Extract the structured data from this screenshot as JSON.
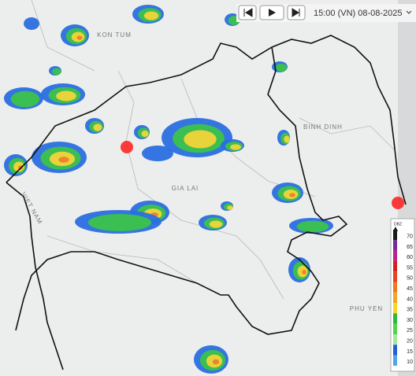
{
  "controls": {
    "time": "15:00 (VN) 08-08-2025"
  },
  "map": {
    "labels": [
      "KON TUM",
      "GIA LAI",
      "BINH DINH",
      "PHU YEN",
      "VIET NAM"
    ]
  },
  "legend": {
    "title": "DBZ",
    "levels": [
      {
        "value": 70,
        "color": "#1a1a1a"
      },
      {
        "value": 65,
        "color": "#7a2a9a"
      },
      {
        "value": 60,
        "color": "#c0208a"
      },
      {
        "value": 55,
        "color": "#d81e1e"
      },
      {
        "value": 50,
        "color": "#e8431c"
      },
      {
        "value": 45,
        "color": "#f2771d"
      },
      {
        "value": 40,
        "color": "#f6a51f"
      },
      {
        "value": 35,
        "color": "#f5d824"
      },
      {
        "value": 30,
        "color": "#2fb83c"
      },
      {
        "value": 25,
        "color": "#4fd54a"
      },
      {
        "value": 20,
        "color": "#a6e89a"
      },
      {
        "value": 15,
        "color": "#1f5fd8"
      },
      {
        "value": 10,
        "color": "#4da4f0"
      }
    ]
  }
}
